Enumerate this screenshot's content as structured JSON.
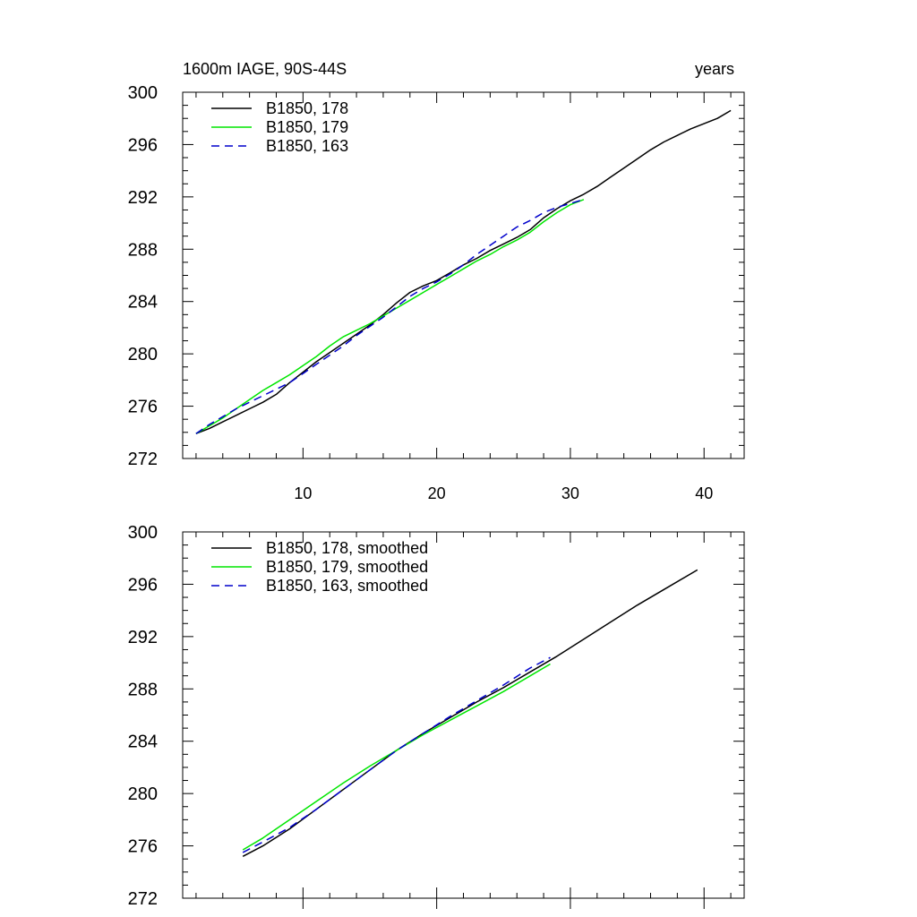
{
  "figure": {
    "title_left": "1600m IAGE, 90S-44S",
    "title_right": "years"
  },
  "chart_data": [
    {
      "type": "line",
      "ylim": [
        272,
        300
      ],
      "xlim": [
        1,
        43
      ],
      "yticks": [
        272,
        276,
        280,
        284,
        288,
        292,
        296,
        300
      ],
      "xticks": [
        10,
        20,
        30,
        40
      ],
      "show_x_tick_labels": true,
      "grid": false,
      "legend_position": "top-left",
      "series": [
        {
          "name": "B1850, 178",
          "color": "#000000",
          "dash": "solid",
          "x": [
            2,
            3,
            4,
            5,
            6,
            7,
            8,
            9,
            10,
            11,
            12,
            13,
            14,
            15,
            16,
            17,
            18,
            19,
            20,
            21,
            22,
            23,
            24,
            25,
            26,
            27,
            28,
            29,
            30,
            31,
            32,
            33,
            34,
            35,
            36,
            37,
            38,
            39,
            40,
            41,
            42
          ],
          "values": [
            273.9,
            274.3,
            274.8,
            275.3,
            275.8,
            276.3,
            276.9,
            277.8,
            278.6,
            279.4,
            280.1,
            280.8,
            281.5,
            282.2,
            283.0,
            283.9,
            284.7,
            285.2,
            285.6,
            286.2,
            286.8,
            287.3,
            287.9,
            288.4,
            288.9,
            289.5,
            290.4,
            291.1,
            291.7,
            292.2,
            292.8,
            293.5,
            294.2,
            294.9,
            295.6,
            296.2,
            296.7,
            297.2,
            297.6,
            298.0,
            298.6
          ]
        },
        {
          "name": "B1850, 179",
          "color": "#00e600",
          "dash": "solid",
          "x": [
            2,
            3,
            4,
            5,
            6,
            7,
            8,
            9,
            10,
            11,
            12,
            13,
            14,
            15,
            16,
            17,
            18,
            19,
            20,
            21,
            22,
            23,
            24,
            25,
            26,
            27,
            28,
            29,
            30,
            31
          ],
          "values": [
            273.9,
            274.5,
            275.1,
            275.8,
            276.5,
            277.2,
            277.8,
            278.4,
            279.1,
            279.8,
            280.6,
            281.3,
            281.8,
            282.3,
            282.9,
            283.5,
            284.1,
            284.7,
            285.3,
            285.9,
            286.5,
            287.1,
            287.6,
            288.2,
            288.7,
            289.3,
            290.1,
            290.8,
            291.4,
            291.8
          ]
        },
        {
          "name": "B1850, 163",
          "color": "#0000cc",
          "dash": "dashed",
          "x": [
            2,
            3,
            4,
            5,
            6,
            7,
            8,
            9,
            10,
            11,
            12,
            13,
            14,
            15,
            16,
            17,
            18,
            19,
            20,
            21,
            22,
            23,
            24,
            25,
            26,
            27,
            28,
            29,
            30,
            31
          ],
          "values": [
            273.9,
            274.6,
            275.2,
            275.8,
            276.3,
            276.8,
            277.3,
            277.8,
            278.5,
            279.2,
            279.9,
            280.6,
            281.4,
            282.1,
            282.8,
            283.6,
            284.4,
            285.0,
            285.5,
            286.1,
            286.8,
            287.6,
            288.3,
            289.0,
            289.7,
            290.2,
            290.8,
            291.2,
            291.5,
            291.8
          ]
        }
      ]
    },
    {
      "type": "line",
      "ylim": [
        272,
        300
      ],
      "xlim": [
        1,
        43
      ],
      "yticks": [
        272,
        276,
        280,
        284,
        288,
        292,
        296,
        300
      ],
      "xticks": [
        10,
        20,
        30,
        40
      ],
      "show_x_tick_labels": false,
      "grid": false,
      "legend_position": "top-left",
      "series": [
        {
          "name": "B1850, 178, smoothed",
          "color": "#000000",
          "dash": "solid",
          "x": [
            5.5,
            7,
            9,
            11,
            13,
            15,
            17,
            19,
            21,
            23,
            25,
            27,
            29,
            31,
            33,
            35,
            37,
            39.5
          ],
          "values": [
            275.2,
            276.0,
            277.3,
            278.8,
            280.3,
            281.8,
            283.3,
            284.6,
            285.8,
            287.0,
            288.1,
            289.3,
            290.5,
            291.8,
            293.1,
            294.4,
            295.6,
            297.1
          ]
        },
        {
          "name": "B1850, 179, smoothed",
          "color": "#00e600",
          "dash": "solid",
          "x": [
            5.5,
            7,
            9,
            11,
            13,
            15,
            17,
            19,
            21,
            23,
            25,
            27,
            28.5
          ],
          "values": [
            275.7,
            276.6,
            278.0,
            279.4,
            280.8,
            282.1,
            283.3,
            284.5,
            285.6,
            286.7,
            287.8,
            289.0,
            289.9
          ]
        },
        {
          "name": "B1850, 163, smoothed",
          "color": "#0000cc",
          "dash": "dashed",
          "x": [
            5.5,
            7,
            9,
            11,
            13,
            15,
            17,
            19,
            21,
            23,
            25,
            27,
            28.5
          ],
          "values": [
            275.5,
            276.3,
            277.4,
            278.8,
            280.3,
            281.8,
            283.3,
            284.6,
            285.9,
            287.1,
            288.3,
            289.6,
            290.4
          ]
        }
      ]
    }
  ]
}
